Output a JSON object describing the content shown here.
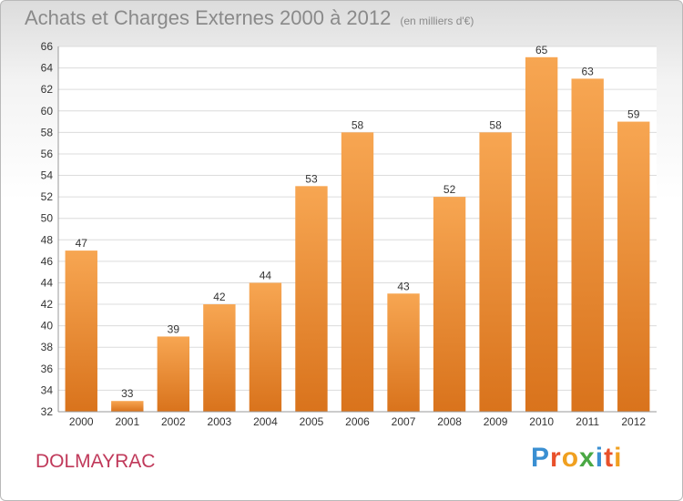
{
  "header": {
    "title": "Achats et Charges Externes 2000 à 2012",
    "unit": "(en milliers d'€)"
  },
  "footer": {
    "town": "DOLMAYRAC",
    "logo": "Proxiti"
  },
  "colors": {
    "bar_light": "#f7a652",
    "bar_dark": "#d9731c",
    "town": "#c0395a",
    "logo_letters": [
      "#3a8fd2",
      "#e8502a",
      "#f0a020",
      "#4aa844",
      "#3a8fd2",
      "#e8502a",
      "#f0a020"
    ]
  },
  "chart_data": {
    "type": "bar",
    "title": "Achats et Charges Externes 2000 à 2012",
    "subtitle": "(en milliers d'€)",
    "categories": [
      "2000",
      "2001",
      "2002",
      "2003",
      "2004",
      "2005",
      "2006",
      "2007",
      "2008",
      "2009",
      "2010",
      "2011",
      "2012"
    ],
    "values": [
      47,
      33,
      39,
      42,
      44,
      53,
      58,
      43,
      52,
      58,
      65,
      63,
      59
    ],
    "ylim": [
      32,
      66
    ],
    "yticks": [
      32,
      34,
      36,
      38,
      40,
      42,
      44,
      46,
      48,
      50,
      52,
      54,
      56,
      58,
      60,
      62,
      64,
      66
    ],
    "grid": true,
    "data_labels": true
  }
}
